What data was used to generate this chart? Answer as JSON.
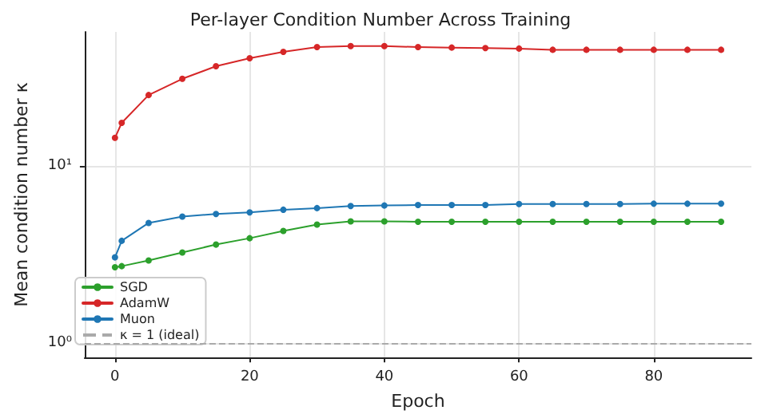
{
  "chart_data": {
    "type": "line",
    "title": "Per-layer Condition Number Across Training",
    "xlabel": "Epoch",
    "ylabel": "Mean condition number κ",
    "x": [
      0,
      1,
      5,
      10,
      15,
      20,
      25,
      30,
      35,
      40,
      45,
      50,
      55,
      60,
      65,
      70,
      75,
      80,
      85,
      90
    ],
    "series": [
      {
        "name": "SGD",
        "color": "#2ca02c",
        "values": [
          2.68,
          2.72,
          2.93,
          3.25,
          3.6,
          3.91,
          4.3,
          4.67,
          4.87,
          4.87,
          4.84,
          4.84,
          4.84,
          4.84,
          4.84,
          4.84,
          4.84,
          4.84,
          4.84,
          4.84
        ]
      },
      {
        "name": "AdamW",
        "color": "#d62728",
        "values": [
          14.4,
          17.5,
          25.1,
          31,
          36.5,
          40.5,
          44,
          46.8,
          47.4,
          47.4,
          46.8,
          46.5,
          46.2,
          45.9,
          45.2,
          45.2,
          45.2,
          45.2,
          45.2,
          45.2
        ]
      },
      {
        "name": "Muon",
        "color": "#1f77b4",
        "values": [
          3.05,
          3.78,
          4.77,
          5.18,
          5.36,
          5.47,
          5.66,
          5.78,
          5.94,
          5.98,
          6.02,
          6.02,
          6.02,
          6.1,
          6.1,
          6.1,
          6.1,
          6.12,
          6.12,
          6.13
        ]
      }
    ],
    "ref_lines": [
      {
        "axis": "y",
        "value": 1,
        "label": "κ = 1 (ideal)",
        "color": "#aaaaaa",
        "line_style": "dashed"
      }
    ],
    "log": "y",
    "xlim": [
      -4.5,
      94.5
    ],
    "ylim": [
      0.83,
      57
    ],
    "xticks": [
      0,
      20,
      40,
      60,
      80
    ],
    "yticks": [
      {
        "value": 1,
        "label": "10⁰"
      },
      {
        "value": 10,
        "label": "10¹"
      }
    ],
    "grid": true,
    "legend": "bottom left",
    "marker": "circle",
    "line_style": "solid"
  }
}
